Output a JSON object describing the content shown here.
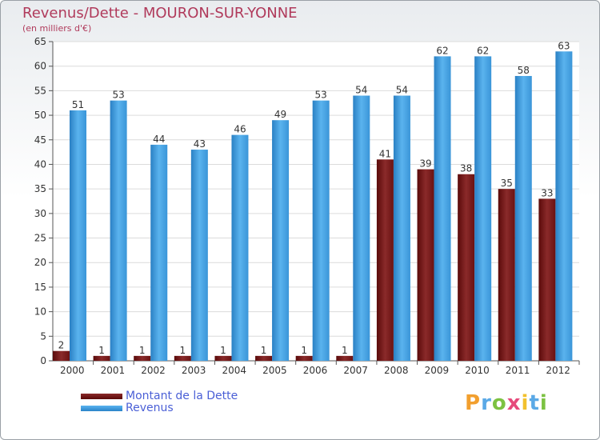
{
  "title": "Revenus/Dette - MOURON-SUR-YONNE",
  "subtitle": "(en milliers d'€)",
  "legend": {
    "debt_label": "Montant de la Dette",
    "revenue_label": "Revenus"
  },
  "logo": {
    "text": "Proxiti"
  },
  "colors": {
    "debt": "#7a1a1a",
    "revenue": "#4aa3e6",
    "title": "#b03a5b",
    "legend_text": "#4a5fd6"
  },
  "chart_data": {
    "type": "bar",
    "title": "Revenus/Dette - MOURON-SUR-YONNE",
    "subtitle": "(en milliers d'€)",
    "categories": [
      "2000",
      "2001",
      "2002",
      "2003",
      "2004",
      "2005",
      "2006",
      "2007",
      "2008",
      "2009",
      "2010",
      "2011",
      "2012"
    ],
    "series": [
      {
        "name": "Montant de la Dette",
        "values": [
          2,
          1,
          1,
          1,
          1,
          1,
          1,
          1,
          41,
          39,
          38,
          35,
          33
        ]
      },
      {
        "name": "Revenus",
        "values": [
          51,
          53,
          44,
          43,
          46,
          49,
          53,
          54,
          54,
          62,
          62,
          58,
          63
        ]
      }
    ],
    "yticks": [
      0,
      5,
      10,
      15,
      20,
      25,
      30,
      35,
      40,
      45,
      50,
      55,
      60,
      65
    ],
    "ylim": [
      0,
      65
    ],
    "xlabel": "",
    "ylabel": "",
    "grid": true,
    "legend_position": "bottom-left"
  }
}
